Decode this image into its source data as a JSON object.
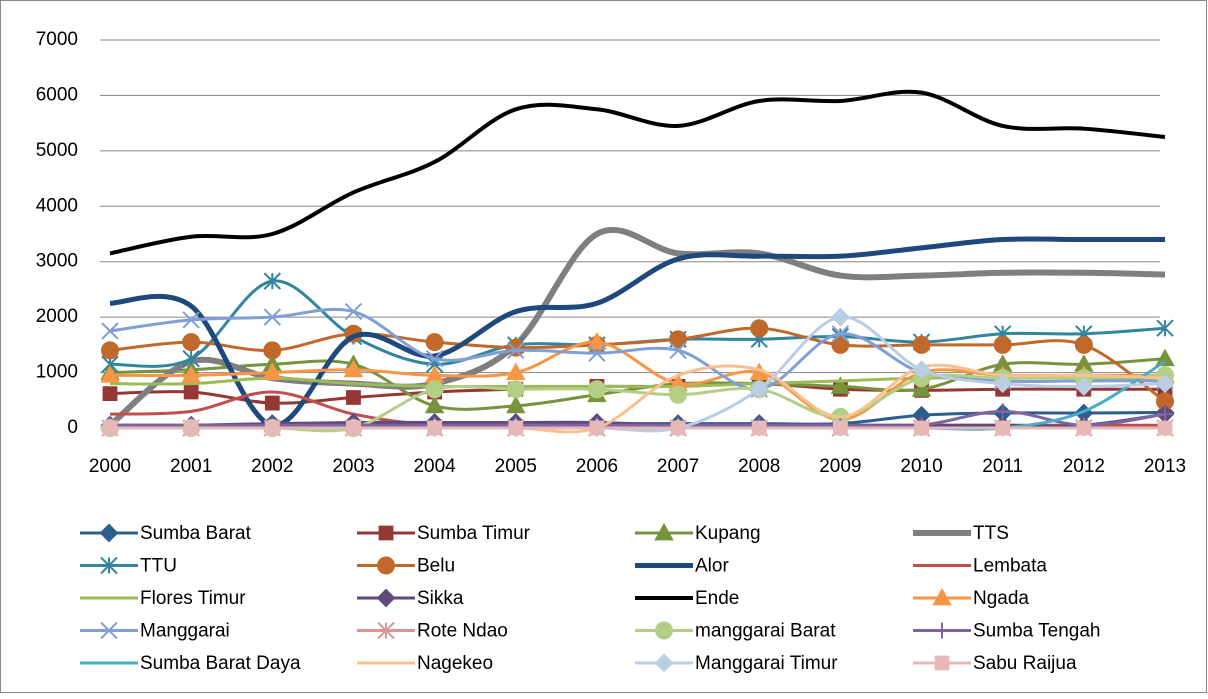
{
  "chart_data": {
    "type": "line",
    "smooth": true,
    "grid": true,
    "categories": [
      "2000",
      "2001",
      "2002",
      "2003",
      "2004",
      "2005",
      "2006",
      "2007",
      "2008",
      "2009",
      "2010",
      "2011",
      "2012",
      "2013"
    ],
    "ylim": [
      0,
      7000
    ],
    "yticks": [
      0,
      1000,
      2000,
      3000,
      4000,
      5000,
      6000,
      7000
    ],
    "series": [
      {
        "name": "Sumba Barat",
        "color": "#2c5d8f",
        "marker": "diamond",
        "line_width": 3,
        "values": [
          50,
          50,
          60,
          80,
          80,
          80,
          80,
          80,
          80,
          80,
          230,
          270,
          270,
          280
        ]
      },
      {
        "name": "Sumba Timur",
        "color": "#953735",
        "marker": "square",
        "line_width": 3,
        "values": [
          620,
          650,
          450,
          550,
          650,
          700,
          750,
          750,
          800,
          700,
          680,
          700,
          700,
          700
        ]
      },
      {
        "name": "Kupang",
        "color": "#77933c",
        "marker": "triangle",
        "line_width": 3,
        "values": [
          1000,
          1050,
          1150,
          1150,
          400,
          400,
          600,
          800,
          800,
          750,
          700,
          1150,
          1150,
          1250
        ]
      },
      {
        "name": "TTS",
        "color": "#7f7f7f",
        "marker": "none",
        "line_width": 6,
        "values": [
          50,
          1200,
          900,
          800,
          800,
          1500,
          3500,
          3150,
          3150,
          2750,
          2750,
          2800,
          2800,
          2770
        ]
      },
      {
        "name": "TTU",
        "color": "#31859c",
        "marker": "asterisk",
        "line_width": 3,
        "values": [
          1150,
          1250,
          2650,
          1650,
          1150,
          1500,
          1500,
          1600,
          1600,
          1650,
          1550,
          1700,
          1700,
          1800
        ]
      },
      {
        "name": "Belu",
        "color": "#c0692a",
        "marker": "circle",
        "line_width": 3,
        "values": [
          1400,
          1550,
          1400,
          1700,
          1550,
          1450,
          1500,
          1600,
          1800,
          1500,
          1500,
          1500,
          1500,
          480
        ]
      },
      {
        "name": "Alor",
        "color": "#1f497d",
        "marker": "none",
        "line_width": 5,
        "values": [
          2250,
          2200,
          50,
          1650,
          1300,
          2100,
          2250,
          3050,
          3100,
          3100,
          3250,
          3400,
          3400,
          3400
        ]
      },
      {
        "name": "Lembata",
        "color": "#c0504d",
        "marker": "none",
        "line_width": 3,
        "values": [
          250,
          300,
          650,
          250,
          50,
          50,
          50,
          50,
          50,
          50,
          50,
          50,
          50,
          50
        ]
      },
      {
        "name": "Flores Timur",
        "color": "#9bbb59",
        "marker": "none",
        "line_width": 3,
        "values": [
          800,
          800,
          900,
          800,
          750,
          750,
          750,
          750,
          800,
          850,
          900,
          900,
          900,
          900
        ]
      },
      {
        "name": "Sikka",
        "color": "#604a7b",
        "marker": "diamond",
        "line_width": 3,
        "values": [
          50,
          50,
          80,
          100,
          100,
          100,
          100,
          50,
          50,
          50,
          50,
          50,
          50,
          250
        ]
      },
      {
        "name": "Ende",
        "color": "#000000",
        "marker": "none",
        "line_width": 4,
        "values": [
          3150,
          3450,
          3500,
          4250,
          4800,
          5750,
          5750,
          5450,
          5900,
          5900,
          6050,
          5450,
          5400,
          5250
        ]
      },
      {
        "name": "Ngada",
        "color": "#f79646",
        "marker": "triangle",
        "line_width": 3,
        "values": [
          950,
          950,
          1000,
          1050,
          950,
          1000,
          1550,
          800,
          1000,
          150,
          1000,
          950,
          950,
          950
        ]
      },
      {
        "name": "Manggarai",
        "color": "#7f9fd6",
        "marker": "x",
        "line_width": 3,
        "values": [
          1750,
          1950,
          2000,
          2100,
          1250,
          1400,
          1350,
          1400,
          700,
          1700,
          1000,
          850,
          850,
          850
        ]
      },
      {
        "name": "Rote Ndao",
        "color": "#d99694",
        "marker": "asterisk",
        "line_width": 3,
        "values": [
          0,
          0,
          0,
          0,
          0,
          0,
          0,
          0,
          0,
          0,
          0,
          0,
          0,
          0
        ]
      },
      {
        "name": "manggarai Barat",
        "color": "#b3cf86",
        "marker": "circle",
        "line_width": 3,
        "values": [
          0,
          0,
          0,
          0,
          700,
          700,
          700,
          600,
          700,
          200,
          900,
          900,
          900,
          950
        ]
      },
      {
        "name": "Sumba Tengah",
        "color": "#8064a2",
        "marker": "plus",
        "line_width": 3,
        "values": [
          50,
          50,
          50,
          50,
          50,
          50,
          50,
          50,
          50,
          50,
          50,
          300,
          50,
          250
        ]
      },
      {
        "name": "Sumba Barat Daya",
        "color": "#4bacc6",
        "marker": "none",
        "line_width": 3,
        "values": [
          0,
          0,
          0,
          0,
          0,
          0,
          0,
          0,
          0,
          0,
          0,
          0,
          300,
          1200
        ]
      },
      {
        "name": "Nagekeo",
        "color": "#fac090",
        "marker": "none",
        "line_width": 3,
        "values": [
          0,
          0,
          0,
          0,
          0,
          0,
          0,
          950,
          1050,
          200,
          1100,
          950,
          950,
          900
        ]
      },
      {
        "name": "Manggarai Timur",
        "color": "#b9cde5",
        "marker": "diamond",
        "line_width": 3,
        "values": [
          0,
          0,
          0,
          0,
          0,
          0,
          0,
          0,
          700,
          2000,
          1050,
          800,
          750,
          800
        ]
      },
      {
        "name": "Sabu Raijua",
        "color": "#e6b9b8",
        "marker": "square",
        "line_width": 3,
        "values": [
          0,
          0,
          0,
          0,
          0,
          0,
          0,
          0,
          0,
          0,
          0,
          0,
          0,
          0
        ]
      }
    ]
  }
}
